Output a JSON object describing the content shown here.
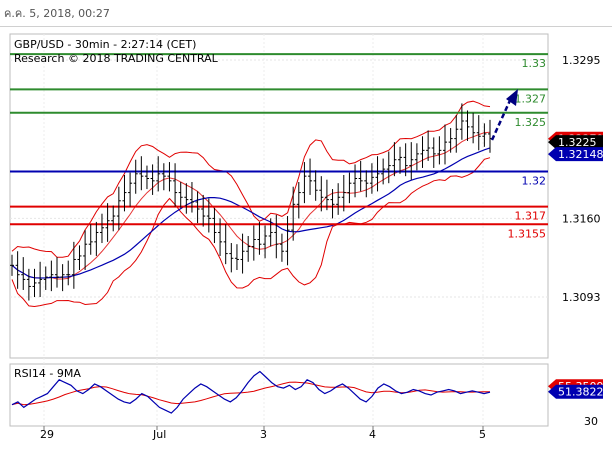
{
  "header": {
    "datetime": "ค.ค. 5, 2018, 00:27"
  },
  "main_panel": {
    "line1": "GBP/USD - 30min - 2:27:14 (CET)",
    "line2": "Research © 2018 TRADING CENTRAL"
  },
  "rsi_panel": {
    "title": "RSI14 - 9MA"
  },
  "colors": {
    "resistance": "#2e8b2e",
    "support": "#e00000",
    "pivot": "#0000b0",
    "price": "#000000",
    "bollinger": "#e00000",
    "ma": "#0000b0",
    "arrow": "#000080",
    "rsi": "#0000b0",
    "rsi_ma": "#e00000"
  },
  "chart_data": {
    "type": "line",
    "price_axis_labels": [
      "1.3295",
      "1.3160",
      "1.3093"
    ],
    "x_axis_labels": [
      "29",
      "Jul",
      "3",
      "4",
      "5"
    ],
    "levels": [
      {
        "value": 1.33,
        "label": "1.33",
        "kind": "resistance"
      },
      {
        "value": 1.327,
        "label": "1.327",
        "kind": "resistance"
      },
      {
        "value": 1.325,
        "label": "1.325",
        "kind": "resistance"
      },
      {
        "value": 1.32,
        "label": "1.32",
        "kind": "pivot"
      },
      {
        "value": 1.317,
        "label": "1.317",
        "kind": "support"
      },
      {
        "value": 1.3155,
        "label": "1.3155",
        "kind": "support"
      }
    ],
    "price_tags": [
      {
        "value": 1.32279,
        "label": "1.32279",
        "kind": "support"
      },
      {
        "value": 1.3225,
        "label": "1.3225",
        "kind": "price"
      },
      {
        "value": 1.32148,
        "label": "1.32148",
        "kind": "pivot"
      }
    ],
    "price_series": [
      1.312,
      1.3112,
      1.3108,
      1.3102,
      1.3105,
      1.3108,
      1.311,
      1.3112,
      1.311,
      1.3112,
      1.3112,
      1.3125,
      1.3128,
      1.3138,
      1.314,
      1.3148,
      1.3152,
      1.3158,
      1.3162,
      1.3175,
      1.3182,
      1.319,
      1.3198,
      1.3196,
      1.3194,
      1.3192,
      1.3198,
      1.3196,
      1.3192,
      1.3182,
      1.3178,
      1.3176,
      1.3174,
      1.3168,
      1.3162,
      1.316,
      1.3148,
      1.314,
      1.313,
      1.3126,
      1.3125,
      1.3132,
      1.3136,
      1.3142,
      1.3138,
      1.3145,
      1.3148,
      1.3138,
      1.3132,
      1.315,
      1.3172,
      1.3182,
      1.3196,
      1.3192,
      1.3184,
      1.3178,
      1.3176,
      1.3172,
      1.3178,
      1.3182,
      1.319,
      1.3194,
      1.3192,
      1.319,
      1.3195,
      1.3198,
      1.3202,
      1.3205,
      1.321,
      1.3212,
      1.3205,
      1.321,
      1.3215,
      1.3218,
      1.322,
      1.3215,
      1.3218,
      1.3225,
      1.3228,
      1.3236,
      1.3243,
      1.3238,
      1.3233,
      1.323,
      1.3232,
      1.3228
    ],
    "rsi_axis_labels": [
      "55.3509",
      "51.3822",
      "30"
    ],
    "rsi_values": [
      {
        "value": 55.3509,
        "kind": "rsi_ma"
      },
      {
        "value": 51.3822,
        "kind": "rsi"
      }
    ],
    "rsi_series": [
      42,
      44,
      40,
      43,
      46,
      48,
      50,
      55,
      60,
      58,
      56,
      52,
      50,
      53,
      57,
      55,
      52,
      49,
      46,
      44,
      43,
      46,
      50,
      48,
      44,
      40,
      38,
      36,
      40,
      46,
      50,
      54,
      57,
      55,
      52,
      49,
      46,
      44,
      47,
      52,
      58,
      63,
      66,
      62,
      58,
      55,
      54,
      56,
      53,
      55,
      60,
      58,
      53,
      50,
      52,
      55,
      57,
      54,
      50,
      46,
      44,
      48,
      54,
      57,
      55,
      52,
      50,
      51,
      53,
      52,
      50,
      49,
      51,
      52,
      53,
      52,
      50,
      51,
      52,
      51,
      50,
      51
    ]
  }
}
